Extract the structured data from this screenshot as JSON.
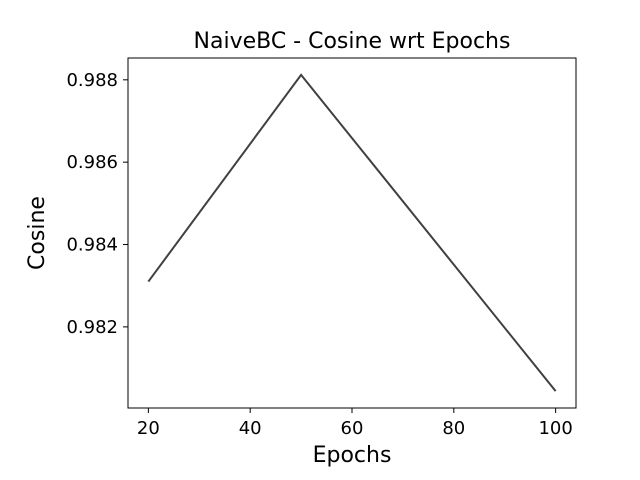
{
  "chart_data": {
    "type": "line",
    "title": "NaiveBC - Cosine wrt Epochs",
    "xlabel": "Epochs",
    "ylabel": "Cosine",
    "x": [
      20,
      50,
      100
    ],
    "series": [
      {
        "name": "Cosine",
        "values": [
          0.9831,
          0.98812,
          0.98044
        ]
      }
    ],
    "xlim": [
      16,
      104
    ],
    "ylim": [
      0.98003,
      0.98853
    ],
    "xticks": [
      20,
      40,
      60,
      80,
      100
    ],
    "xtick_labels": [
      "20",
      "40",
      "60",
      "80",
      "100"
    ],
    "yticks": [
      0.982,
      0.984,
      0.986,
      0.988
    ],
    "ytick_labels": [
      "0.982",
      "0.984",
      "0.986",
      "0.988"
    ],
    "grid": false,
    "line_color": "#404040"
  }
}
